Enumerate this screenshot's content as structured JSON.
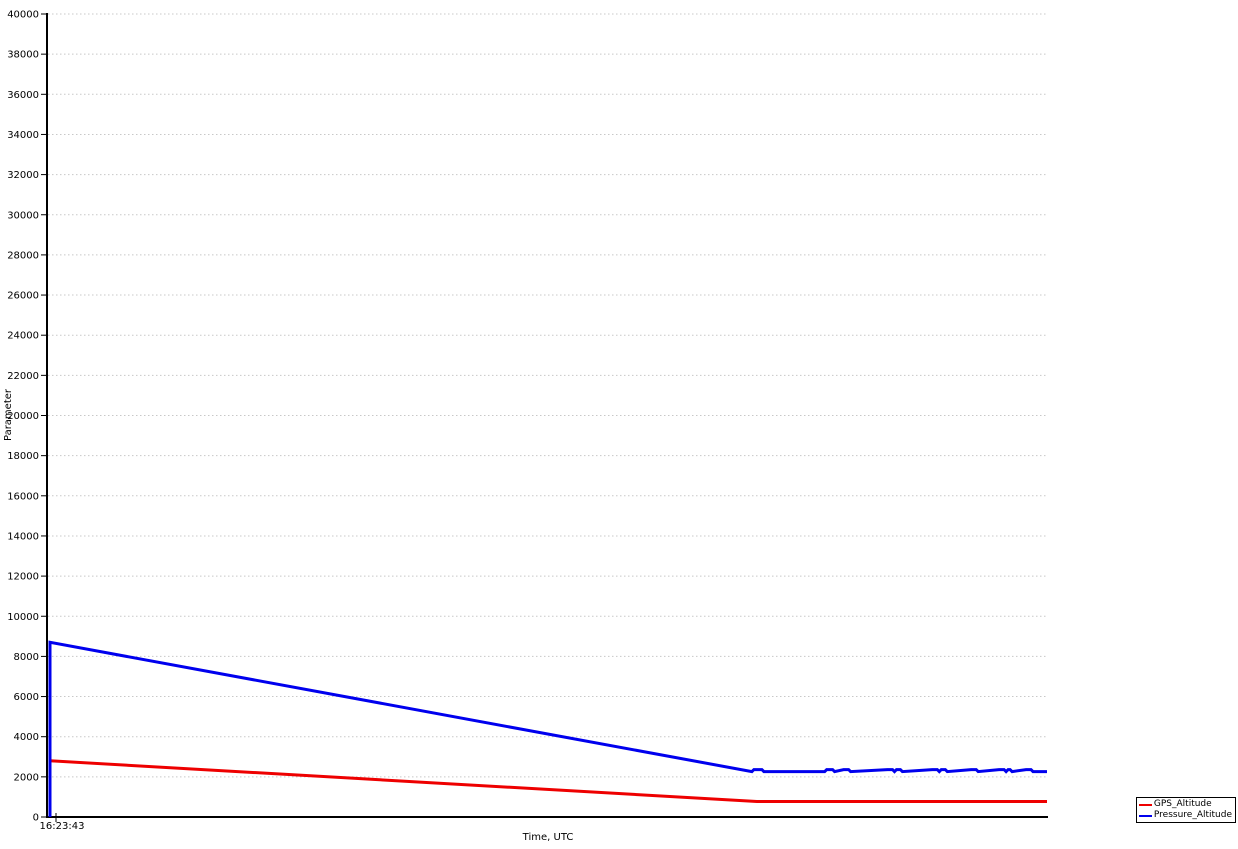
{
  "chart_data": {
    "type": "line",
    "title": "",
    "xlabel": "Time, UTC",
    "ylabel": "Parameter",
    "ylim": [
      0,
      40000
    ],
    "ytick_step": 2000,
    "yticks": [
      0,
      2000,
      4000,
      6000,
      8000,
      10000,
      12000,
      14000,
      16000,
      18000,
      20000,
      22000,
      24000,
      26000,
      28000,
      30000,
      32000,
      34000,
      36000,
      38000,
      40000
    ],
    "xticks": [
      {
        "frac": 0,
        "label": "16:23:43"
      }
    ],
    "grid": {
      "horizontal": "dotted",
      "color": "#c8c8c8"
    },
    "axis_color": "#000000",
    "background": "#ffffff",
    "legend": {
      "position": "outside-bottom-right",
      "entries": [
        {
          "label": "GPS_Altitude",
          "color": "#ee0000"
        },
        {
          "label": "Pressure_Altitude",
          "color": "#0000ee"
        }
      ]
    },
    "series": [
      {
        "name": "GPS_Altitude",
        "color": "#ee0000",
        "points": [
          [
            0,
            2800
          ],
          [
            0.709,
            770
          ],
          [
            1,
            770
          ]
        ]
      },
      {
        "name": "Pressure_Altitude",
        "color": "#0000ee",
        "points": [
          [
            0,
            0
          ],
          [
            0,
            8700
          ],
          [
            0.704,
            2260
          ],
          [
            0.706,
            2360
          ],
          [
            0.714,
            2360
          ],
          [
            0.716,
            2260
          ],
          [
            0.777,
            2260
          ],
          [
            0.779,
            2360
          ],
          [
            0.785,
            2360
          ],
          [
            0.787,
            2260
          ],
          [
            0.796,
            2360
          ],
          [
            0.801,
            2360
          ],
          [
            0.803,
            2260
          ],
          [
            0.84,
            2360
          ],
          [
            0.845,
            2360
          ],
          [
            0.847,
            2260
          ],
          [
            0.849,
            2360
          ],
          [
            0.853,
            2360
          ],
          [
            0.855,
            2260
          ],
          [
            0.885,
            2360
          ],
          [
            0.89,
            2360
          ],
          [
            0.892,
            2260
          ],
          [
            0.894,
            2360
          ],
          [
            0.898,
            2360
          ],
          [
            0.9,
            2260
          ],
          [
            0.924,
            2360
          ],
          [
            0.929,
            2360
          ],
          [
            0.931,
            2260
          ],
          [
            0.952,
            2360
          ],
          [
            0.957,
            2360
          ],
          [
            0.959,
            2260
          ],
          [
            0.961,
            2360
          ],
          [
            0.963,
            2360
          ],
          [
            0.965,
            2260
          ],
          [
            0.979,
            2360
          ],
          [
            0.984,
            2360
          ],
          [
            0.986,
            2260
          ],
          [
            1,
            2260
          ]
        ]
      }
    ]
  }
}
